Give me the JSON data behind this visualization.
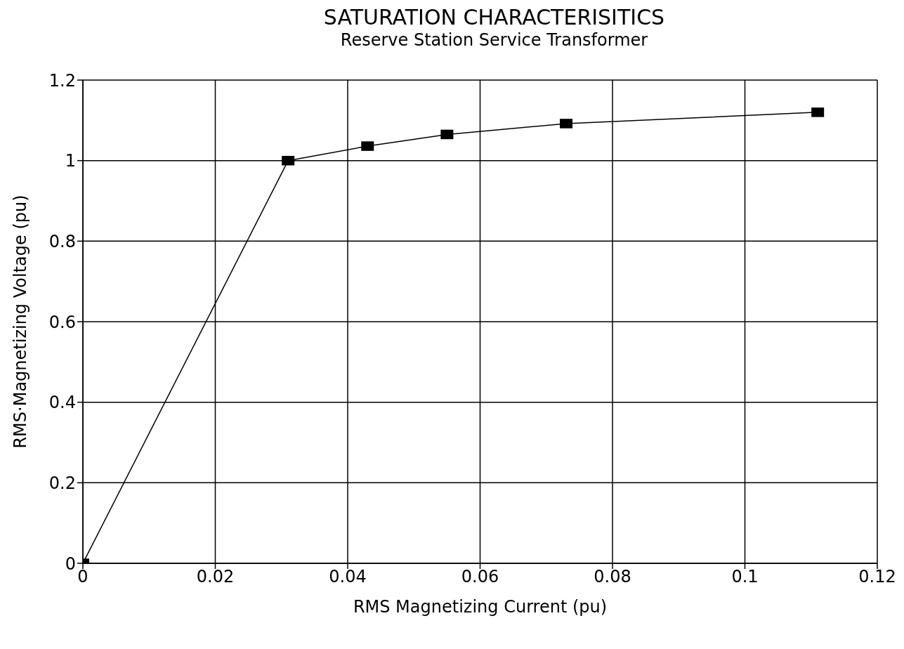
{
  "chart_data": {
    "type": "line",
    "title": "SATURATION CHARACTERISITICS",
    "subtitle": "Reserve Station Service Transformer",
    "xlabel": "RMS Magnetizing Current (pu)",
    "ylabel": "RMS·Magnetizing Voltage (pu)",
    "x": [
      0,
      0.031,
      0.043,
      0.055,
      0.073,
      0.111
    ],
    "series": [
      {
        "color": "#000000",
        "values": [
          0,
          1.0,
          1.036,
          1.065,
          1.092,
          1.12
        ]
      }
    ],
    "xlim": [
      0,
      0.12
    ],
    "xticks": [
      0,
      0.02,
      0.04,
      0.06,
      0.08,
      0.1,
      0.12
    ],
    "ylim": [
      0,
      1.2
    ],
    "yticks": [
      0,
      0.2,
      0.4,
      0.6,
      0.8,
      1,
      1.2
    ],
    "grid": true,
    "legend": false,
    "marker": "square",
    "line_style": "solid"
  }
}
